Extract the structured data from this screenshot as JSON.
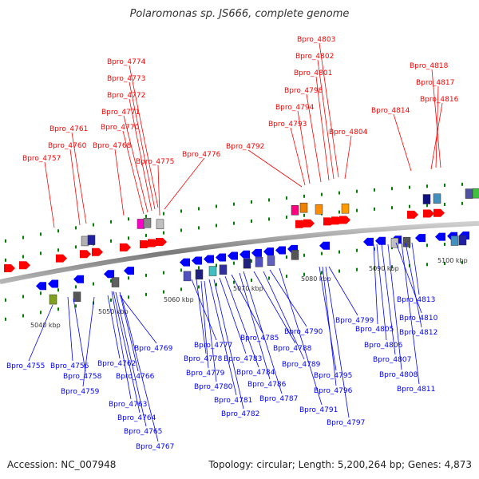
{
  "title": "Polaromonas sp. JS666, complete genome",
  "accession": "Accession: NC_007948",
  "summary": "Topology: circular; Length: 5,200,264 bp; Genes: 4,873",
  "scale_labels": [
    "5040 kbp",
    "5050 kbp",
    "5060 kbp",
    "5070 kbp",
    "5080 kbp",
    "5090 kbp",
    "5100 kbp"
  ],
  "colors": {
    "forward": "#ff0000",
    "reverse": "#0000ff",
    "backbone": "#8a8a8a",
    "ticks": "#008000"
  },
  "forward_genes": [
    "Bpro_4757",
    "Bpro_4760",
    "Bpro_4761",
    "Bpro_4768",
    "Bpro_4770",
    "Bpro_4771",
    "Bpro_4772",
    "Bpro_4773",
    "Bpro_4774",
    "Bpro_4775",
    "Bpro_4776",
    "Bpro_4792",
    "Bpro_4793",
    "Bpro_4794",
    "Bpro_4798",
    "Bpro_4801",
    "Bpro_4802",
    "Bpro_4803",
    "Bpro_4804",
    "Bpro_4814",
    "Bpro_4816",
    "Bpro_4817",
    "Bpro_4818"
  ],
  "reverse_genes": [
    "Bpro_4755",
    "Bpro_4756",
    "Bpro_4758",
    "Bpro_4759",
    "Bpro_4762",
    "Bpro_4763",
    "Bpro_4764",
    "Bpro_4765",
    "Bpro_4766",
    "Bpro_4767",
    "Bpro_4769",
    "Bpro_4777",
    "Bpro_4778",
    "Bpro_4779",
    "Bpro_4780",
    "Bpro_4781",
    "Bpro_4782",
    "Bpro_4783",
    "Bpro_4784",
    "Bpro_4785",
    "Bpro_4786",
    "Bpro_4787",
    "Bpro_4788",
    "Bpro_4789",
    "Bpro_4790",
    "Bpro_4791",
    "Bpro_4795",
    "Bpro_4796",
    "Bpro_4797",
    "Bpro_4799",
    "Bpro_4805",
    "Bpro_4806",
    "Bpro_4807",
    "Bpro_4808",
    "Bpro_4810",
    "Bpro_4811",
    "Bpro_4812",
    "Bpro_4813"
  ]
}
